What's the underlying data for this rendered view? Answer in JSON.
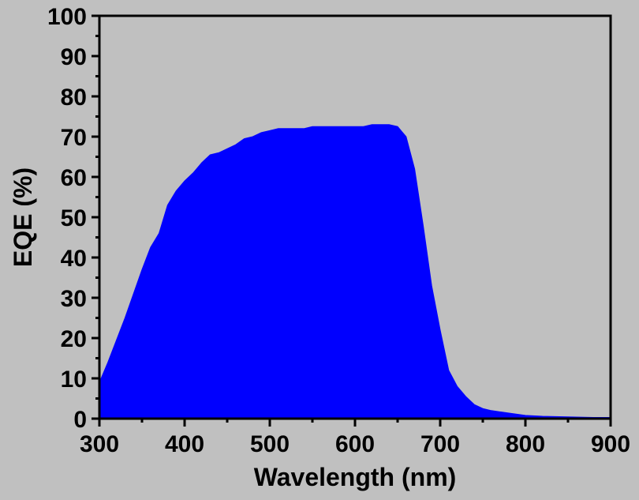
{
  "chart_data": {
    "type": "area",
    "xlabel": "Wavelength (nm)",
    "ylabel": "EQE (%)",
    "xlim": [
      300,
      900
    ],
    "ylim": [
      0,
      100
    ],
    "x_ticks": [
      300,
      400,
      500,
      600,
      700,
      800,
      900
    ],
    "y_ticks": [
      0,
      10,
      20,
      30,
      40,
      50,
      60,
      70,
      80,
      90,
      100
    ],
    "grid": false,
    "background_color": "#c0c0c0",
    "fill_color": "#0000ff",
    "series": [
      {
        "x": [
          300,
          310,
          320,
          330,
          340,
          350,
          360,
          370,
          380,
          390,
          400,
          410,
          420,
          430,
          440,
          450,
          460,
          470,
          480,
          490,
          500,
          510,
          520,
          530,
          540,
          550,
          560,
          570,
          580,
          590,
          600,
          610,
          620,
          630,
          640,
          650,
          660,
          670,
          680,
          690,
          700,
          710,
          720,
          730,
          740,
          750,
          760,
          770,
          780,
          790,
          800,
          820,
          840,
          860,
          880,
          900
        ],
        "y": [
          9,
          14,
          19.5,
          25,
          31,
          37,
          42.5,
          46,
          53,
          56.5,
          59,
          61,
          63.5,
          65.5,
          66,
          67,
          68,
          69.5,
          70,
          71,
          71.5,
          72,
          72,
          72,
          72,
          72.5,
          72.5,
          72.5,
          72.5,
          72.5,
          72.5,
          72.5,
          73,
          73,
          73,
          72.5,
          70,
          62,
          48,
          33,
          22,
          12,
          8,
          5.5,
          3.5,
          2.5,
          2,
          1.7,
          1.4,
          1.1,
          0.8,
          0.6,
          0.5,
          0.4,
          0.3,
          0.3
        ]
      }
    ]
  }
}
